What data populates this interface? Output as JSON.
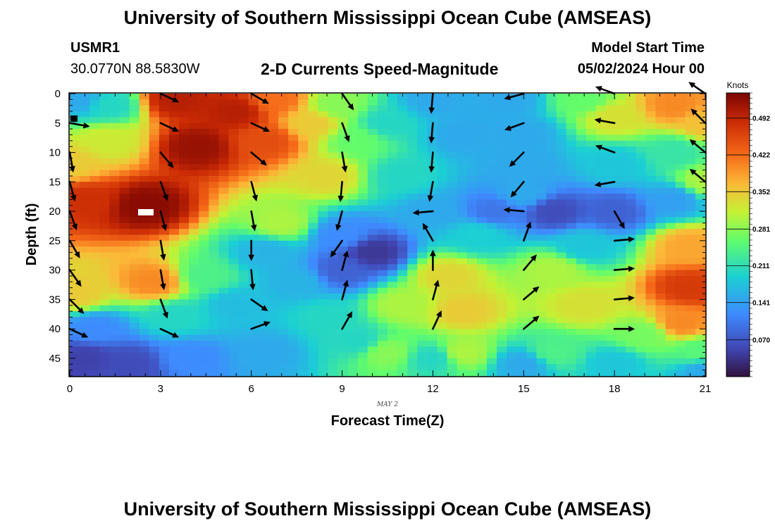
{
  "title": "University of Southern Mississippi Ocean Cube (AMSEAS)",
  "footer_title": "University of Southern Mississippi Ocean Cube (AMSEAS)",
  "station": {
    "id": "USMR1",
    "coords": "30.0770N  88.5830W"
  },
  "model": {
    "label": "Model Start Time",
    "value": "05/02/2024 Hour 00"
  },
  "chart_data": {
    "type": "heatmap",
    "title": "2-D Currents Speed-Magnitude",
    "xlabel": "Forecast Time(Z)",
    "ylabel": "Depth (ft)",
    "date_label": "MAY 2",
    "xlim": [
      0,
      21
    ],
    "ylim": [
      0,
      48
    ],
    "x_ticks": [
      0,
      3,
      6,
      9,
      12,
      15,
      18,
      21
    ],
    "y_ticks": [
      0,
      5,
      10,
      15,
      20,
      25,
      30,
      35,
      40,
      45
    ],
    "colorbar": {
      "title": "Knots",
      "range": [
        0,
        0.54
      ],
      "ticks": [
        "0.070",
        "0.141",
        "0.211",
        "0.281",
        "0.352",
        "0.422",
        "0.492"
      ]
    },
    "speed_cores": [
      {
        "time": 2.5,
        "depth": 17,
        "speed": 0.52
      },
      {
        "time": 5.0,
        "depth": 5,
        "speed": 0.5
      },
      {
        "time": 20.5,
        "depth": 32,
        "speed": 0.47
      },
      {
        "time": 20.5,
        "depth": 3,
        "speed": 0.4
      },
      {
        "time": 13.0,
        "depth": 33,
        "speed": 0.33
      },
      {
        "time": 10.0,
        "depth": 27,
        "speed": 0.04
      },
      {
        "time": 16.0,
        "depth": 20,
        "speed": 0.07
      },
      {
        "time": 0.5,
        "depth": 45,
        "speed": 0.05
      }
    ],
    "arrow_times": [
      0,
      3,
      6,
      9,
      12,
      15,
      18,
      21
    ],
    "arrow_depths": [
      0,
      5,
      10,
      15,
      20,
      25,
      30,
      35,
      40
    ],
    "arrow_directions_deg": [
      [
        null,
        100,
        170,
        165,
        160,
        150,
        145,
        135,
        115
      ],
      [
        115,
        115,
        140,
        160,
        165,
        170,
        170,
        160,
        115
      ],
      [
        120,
        115,
        130,
        165,
        170,
        180,
        175,
        125,
        70
      ],
      [
        145,
        160,
        170,
        185,
        195,
        215,
        15,
        15,
        30
      ],
      [
        185,
        185,
        185,
        190,
        265,
        330,
        0,
        15,
        25
      ],
      [
        255,
        250,
        225,
        220,
        275,
        20,
        40,
        50,
        50
      ],
      [
        290,
        280,
        290,
        260,
        150,
        85,
        85,
        85,
        90
      ],
      [
        305,
        315,
        310,
        310,
        null,
        null,
        null,
        null,
        null
      ]
    ]
  }
}
